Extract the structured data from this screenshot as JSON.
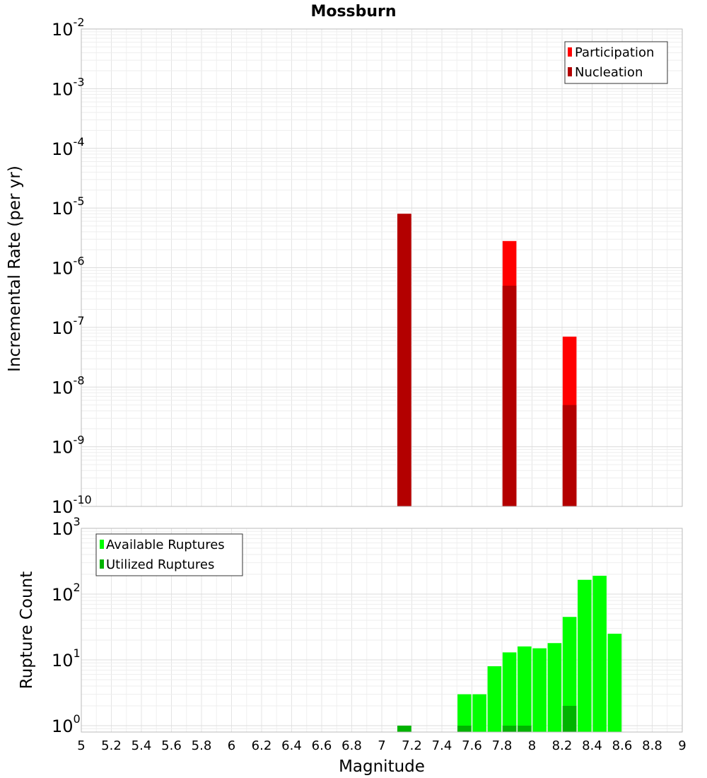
{
  "chart_data": [
    {
      "type": "bar",
      "title": "Mossburn",
      "xlabel": "",
      "ylabel": "Incremental Rate (per yr)",
      "yscale": "log",
      "ylim": [
        1e-10,
        0.01
      ],
      "xlim": [
        5,
        9
      ],
      "grid": true,
      "legend_position": "top-right",
      "y_tick_labels": [
        {
          "base": "10",
          "exp": "-10"
        },
        {
          "base": "10",
          "exp": "-9"
        },
        {
          "base": "10",
          "exp": "-8"
        },
        {
          "base": "10",
          "exp": "-7"
        },
        {
          "base": "10",
          "exp": "-6"
        },
        {
          "base": "10",
          "exp": "-5"
        },
        {
          "base": "10",
          "exp": "-4"
        },
        {
          "base": "10",
          "exp": "-3"
        },
        {
          "base": "10",
          "exp": "-2"
        }
      ],
      "series": [
        {
          "name": "Participation",
          "color": "#ff0000",
          "points": [
            {
              "x": 7.15,
              "y": 8e-06
            },
            {
              "x": 7.85,
              "y": 2.8e-06
            },
            {
              "x": 8.25,
              "y": 7e-08
            }
          ]
        },
        {
          "name": "Nucleation",
          "color": "#b30000",
          "points": [
            {
              "x": 7.15,
              "y": 8e-06
            },
            {
              "x": 7.85,
              "y": 5e-07
            },
            {
              "x": 8.25,
              "y": 5e-09
            }
          ]
        }
      ]
    },
    {
      "type": "bar",
      "xlabel": "Magnitude",
      "ylabel": "Rupture Count",
      "yscale": "log",
      "ylim": [
        0.8,
        1000
      ],
      "xlim": [
        5,
        9
      ],
      "grid": true,
      "legend_position": "top-left",
      "x_tick_labels": [
        "5",
        "5.2",
        "5.4",
        "5.6",
        "5.8",
        "6",
        "6.2",
        "6.4",
        "6.6",
        "6.8",
        "7",
        "7.2",
        "7.4",
        "7.6",
        "7.8",
        "8",
        "8.2",
        "8.4",
        "8.6",
        "8.8",
        "9"
      ],
      "y_tick_labels": [
        {
          "base": "10",
          "exp": "0"
        },
        {
          "base": "10",
          "exp": "1"
        },
        {
          "base": "10",
          "exp": "2"
        },
        {
          "base": "10",
          "exp": "3"
        }
      ],
      "series": [
        {
          "name": "Available Ruptures",
          "color": "#00ff00",
          "points": [
            {
              "x": 7.15,
              "y": 1
            },
            {
              "x": 7.55,
              "y": 3
            },
            {
              "x": 7.65,
              "y": 3
            },
            {
              "x": 7.75,
              "y": 8
            },
            {
              "x": 7.85,
              "y": 13
            },
            {
              "x": 7.95,
              "y": 16
            },
            {
              "x": 8.05,
              "y": 15
            },
            {
              "x": 8.15,
              "y": 18
            },
            {
              "x": 8.25,
              "y": 45
            },
            {
              "x": 8.35,
              "y": 165
            },
            {
              "x": 8.45,
              "y": 190
            },
            {
              "x": 8.55,
              "y": 25
            }
          ]
        },
        {
          "name": "Utilized Ruptures",
          "color": "#00b300",
          "points": [
            {
              "x": 7.15,
              "y": 1
            },
            {
              "x": 7.55,
              "y": 1
            },
            {
              "x": 7.85,
              "y": 1
            },
            {
              "x": 7.95,
              "y": 1
            },
            {
              "x": 8.25,
              "y": 2
            }
          ]
        }
      ]
    }
  ]
}
